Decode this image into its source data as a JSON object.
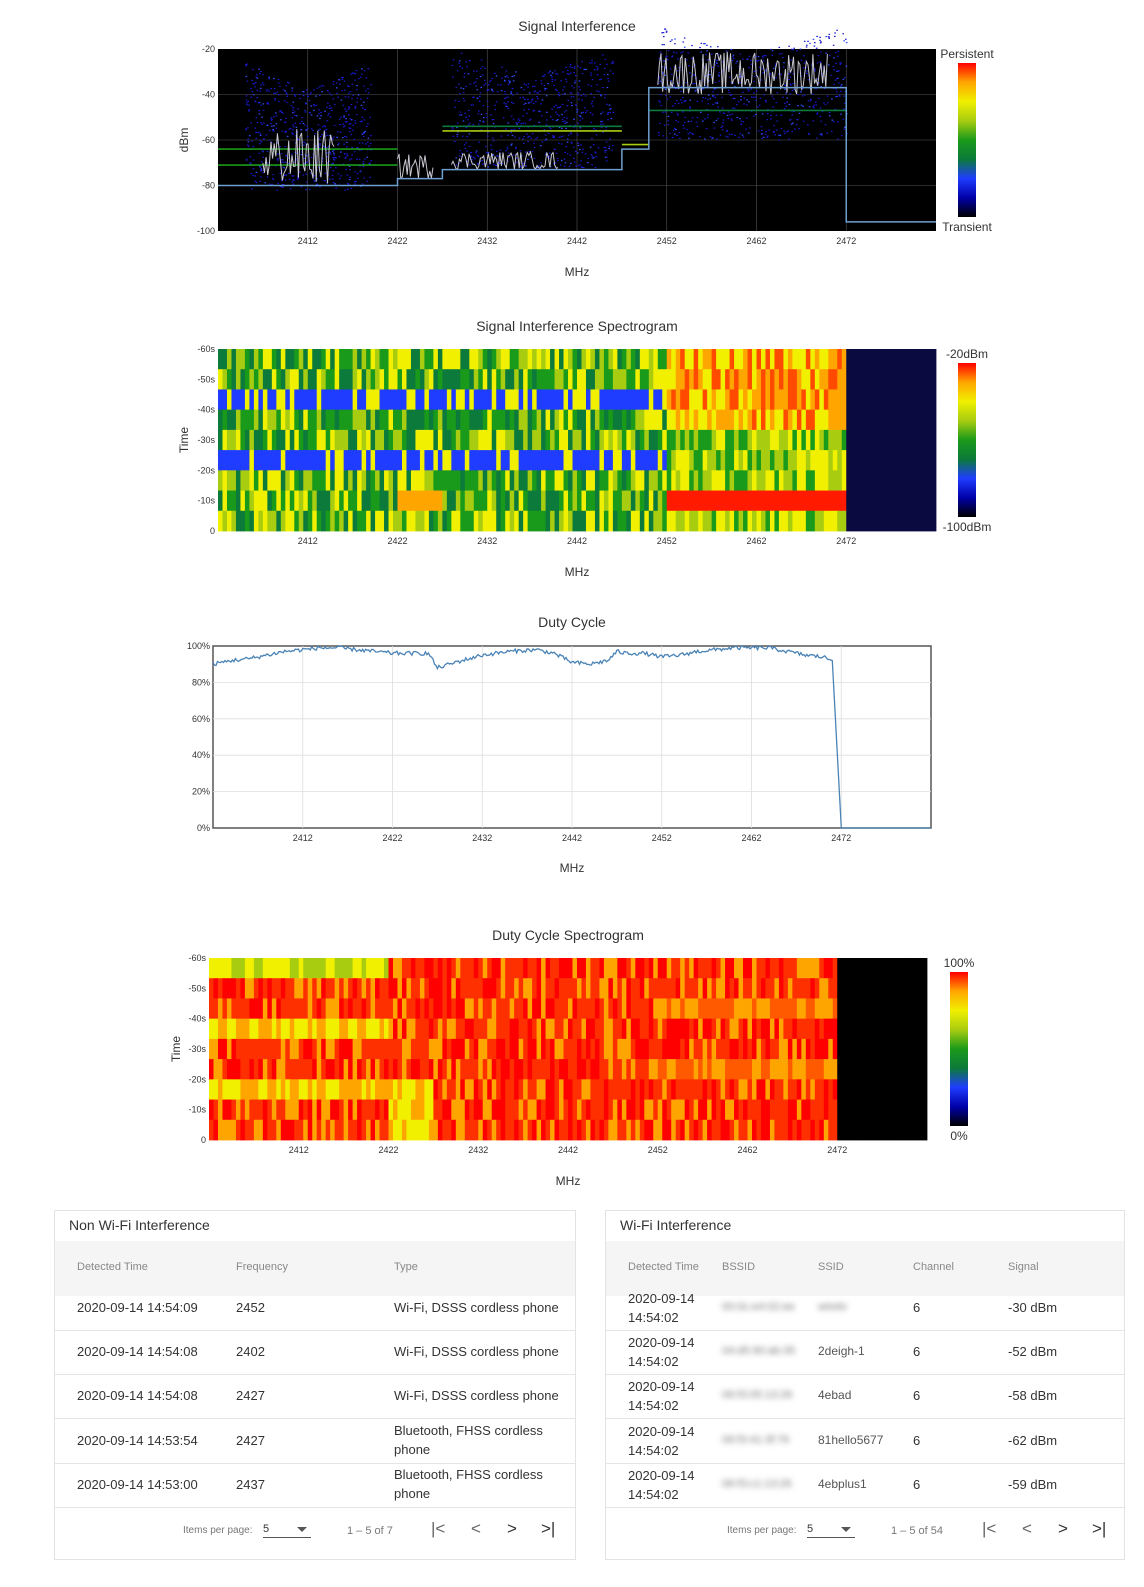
{
  "colors": {
    "plot_bg": "#000000",
    "trace": "#c8c8d2",
    "baseline": "#6da0d0",
    "duty_line": "#4a83b6",
    "heat_scale": [
      "#000000",
      "#0000a8",
      "#1f3cff",
      "#0c7a3a",
      "#1a9a1a",
      "#a8cc10",
      "#f0f000",
      "#ffa500",
      "#ff0000"
    ]
  },
  "charts": [
    {
      "id": "signal-interference",
      "type": "area",
      "title": "Signal Interference",
      "xlabel": "MHz",
      "ylabel": "dBm",
      "x_ticks": [
        "2412",
        "2422",
        "2432",
        "2442",
        "2452",
        "2462",
        "2472"
      ],
      "y_ticks": [
        "-20",
        "-40",
        "-60",
        "-80",
        "-100"
      ],
      "ylim": [
        -100,
        -20
      ],
      "legend": {
        "top": "Persistent",
        "bottom": "Transient",
        "placement": "right"
      },
      "baseline": [
        {
          "x0": 2402,
          "x1": 2422,
          "y": -80
        },
        {
          "x0": 2422,
          "x1": 2427,
          "y": -77
        },
        {
          "x0": 2427,
          "x1": 2447,
          "y": -73
        },
        {
          "x0": 2447,
          "x1": 2450,
          "y": -64
        },
        {
          "x0": 2450,
          "x1": 2472,
          "y": -37
        },
        {
          "x0": 2472,
          "x1": 2482,
          "y": -96
        }
      ]
    },
    {
      "id": "signal-interference-spectrogram",
      "type": "heatmap",
      "title": "Signal Interference Spectrogram",
      "xlabel": "MHz",
      "ylabel": "Time",
      "x_ticks": [
        "2412",
        "2422",
        "2432",
        "2442",
        "2452",
        "2462",
        "2472"
      ],
      "y_ticks": [
        "-60s",
        "-50s",
        "-40s",
        "-30s",
        "-20s",
        "-10s",
        "0"
      ],
      "legend": {
        "top": "-20dBm",
        "bottom": "-100dBm",
        "placement": "right"
      }
    },
    {
      "id": "duty-cycle",
      "type": "line",
      "title": "Duty Cycle",
      "xlabel": "MHz",
      "ylabel": "",
      "x_ticks": [
        "2412",
        "2422",
        "2432",
        "2442",
        "2452",
        "2462",
        "2472"
      ],
      "y_ticks": [
        "100%",
        "80%",
        "60%",
        "40%",
        "20%",
        "0%"
      ],
      "ylim": [
        0,
        100
      ],
      "series": [
        {
          "x": [
            2402,
            2404,
            2406,
            2408,
            2410,
            2412,
            2414,
            2416,
            2418,
            2420,
            2422,
            2423,
            2426,
            2427,
            2429,
            2432,
            2435,
            2438,
            2440,
            2442,
            2444,
            2446,
            2447,
            2448,
            2450,
            2452,
            2454,
            2456,
            2458,
            2460,
            2462,
            2464,
            2466,
            2468,
            2470,
            2471,
            2472,
            2482
          ],
          "y": [
            90,
            92,
            93,
            95,
            97,
            98,
            99,
            99,
            98,
            97,
            96,
            96,
            96,
            88,
            91,
            95,
            97,
            98,
            96,
            91,
            90,
            92,
            97,
            96,
            96,
            94,
            95,
            97,
            98,
            99,
            99,
            99,
            97,
            95,
            94,
            92,
            0,
            0
          ]
        }
      ]
    },
    {
      "id": "duty-cycle-spectrogram",
      "type": "heatmap",
      "title": "Duty Cycle Spectrogram",
      "xlabel": "MHz",
      "ylabel": "Time",
      "x_ticks": [
        "2412",
        "2422",
        "2432",
        "2442",
        "2452",
        "2462",
        "2472"
      ],
      "y_ticks": [
        "-60s",
        "-50s",
        "-40s",
        "-30s",
        "-20s",
        "-10s",
        "0"
      ],
      "legend": {
        "top": "100%",
        "bottom": "0%",
        "placement": "right"
      }
    }
  ],
  "non_wifi": {
    "title": "Non Wi-Fi Interference",
    "columns": [
      "Detected Time",
      "Frequency",
      "Type"
    ],
    "rows": [
      [
        "2020-09-14 14:54:09",
        "2452",
        "Wi-Fi, DSSS cordless phone"
      ],
      [
        "2020-09-14 14:54:08",
        "2402",
        "Wi-Fi, DSSS cordless phone"
      ],
      [
        "2020-09-14 14:54:08",
        "2427",
        "Wi-Fi, DSSS cordless phone"
      ],
      [
        "2020-09-14 14:53:54",
        "2427",
        "Bluetooth, FHSS cordless phone"
      ],
      [
        "2020-09-14 14:53:00",
        "2437",
        "Bluetooth, FHSS cordless phone"
      ]
    ],
    "items_per_page_label": "Items per page:",
    "items_per_page": "5",
    "range": "1 – 5 of 7"
  },
  "wifi": {
    "title": "Wi-Fi Interference",
    "columns": [
      "Detected Time",
      "BSSID",
      "SSID",
      "Channel",
      "Signal"
    ],
    "rows": [
      [
        "2020-09-14 14:54:02",
        "00:0c:e4:02:ee",
        "wirelo",
        "6",
        "-30 dBm"
      ],
      [
        "2020-09-14 14:54:02",
        "04:d5:90:ab:35",
        "2deigh-1",
        "6",
        "-52 dBm"
      ],
      [
        "2020-09-14 14:54:02",
        "06:f3:05:13:26",
        "4ebad",
        "6",
        "-58 dBm"
      ],
      [
        "2020-09-14 14:54:02",
        "06:f3:41:3f:76",
        "81hello5677",
        "6",
        "-62 dBm"
      ],
      [
        "2020-09-14 14:54:02",
        "06:f3:c1:13:26",
        "4ebplus1",
        "6",
        "-59 dBm"
      ]
    ],
    "items_per_page_label": "Items per page:",
    "items_per_page": "5",
    "range": "1 – 5 of 54"
  }
}
